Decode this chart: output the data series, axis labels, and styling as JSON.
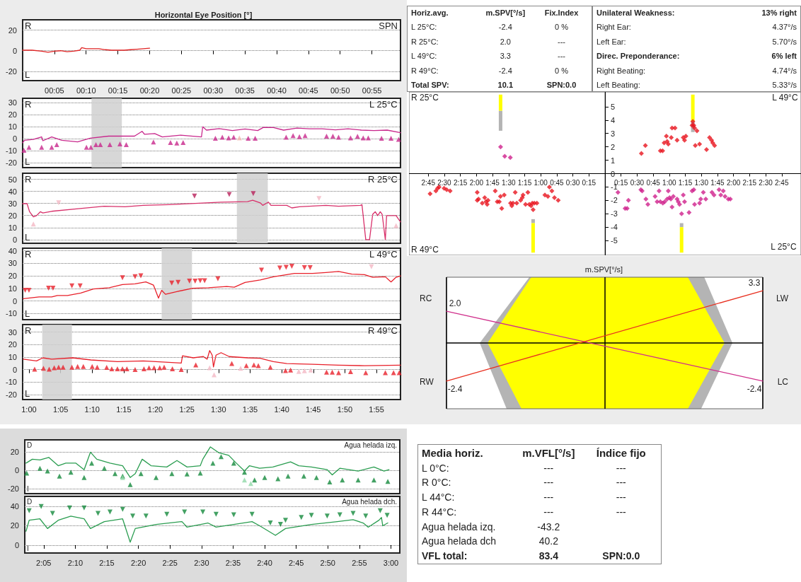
{
  "chart_data": [
    {
      "type": "line",
      "title": "Horizontal Eye Position [°]",
      "annotations": [
        "R",
        "L",
        "SPN"
      ],
      "xlim": [
        0,
        59.5
      ],
      "xticks": [
        {
          "value": 5,
          "label": "00:05"
        },
        {
          "value": 10,
          "label": "00:10"
        },
        {
          "value": 15,
          "label": "00:15"
        },
        {
          "value": 20,
          "label": "00:20"
        },
        {
          "value": 25,
          "label": "00:25"
        },
        {
          "value": 30,
          "label": "00:30"
        },
        {
          "value": 35,
          "label": "00:35"
        },
        {
          "value": 40,
          "label": "00:40"
        },
        {
          "value": 45,
          "label": "00:45"
        },
        {
          "value": 50,
          "label": "00:50"
        },
        {
          "value": 55,
          "label": "00:55"
        }
      ],
      "ylim": [
        -29,
        30
      ],
      "yticks": [
        -20,
        0,
        20
      ],
      "grid": "y",
      "series": [
        {
          "type": "line",
          "color": "#e02424",
          "marker": "none",
          "x": [
            0,
            1.5,
            3,
            4,
            5,
            6,
            7,
            8,
            9,
            9.3,
            10,
            11,
            12,
            13,
            14,
            15,
            16,
            17,
            18,
            19,
            20
          ],
          "values": [
            0.5,
            0.5,
            -0.5,
            -1.5,
            -0.5,
            0,
            -1,
            -0.5,
            0.5,
            3,
            2,
            2,
            2,
            1,
            0.5,
            0.5,
            0.5,
            1,
            1.5,
            2,
            2.5
          ]
        }
      ]
    },
    {
      "type": "line",
      "annotations": [
        "R",
        "L",
        "L 25°C"
      ],
      "xlim": [
        59,
        118.8
      ],
      "ylim": [
        -24,
        33.5
      ],
      "yticks": [
        -20,
        -10,
        0,
        10,
        20,
        30
      ],
      "tick_labels": "y",
      "grid": "y",
      "bands": [
        {
          "axis": "x",
          "from": 69.9,
          "to": 74.7,
          "color": "#d0d0d0"
        }
      ],
      "series": [
        {
          "type": "line",
          "color": "#c8288c",
          "marker": "none",
          "x": [
            59,
            59.3,
            60.7,
            62,
            62.2,
            63.6,
            65.2,
            67.7,
            69.7,
            72.6,
            76.7,
            77.9,
            78.3,
            79.9,
            81.1,
            84,
            87.3,
            87.5,
            88.1,
            90.1,
            92.2,
            94.2,
            96.2,
            97.1,
            98.7,
            100.3,
            102.4,
            104.4,
            106.4,
            108.5,
            110.5,
            112.6,
            114.6,
            116.7,
            118.8
          ],
          "values": [
            -3.4,
            -1.3,
            -0.6,
            1.5,
            -1.7,
            1.5,
            -1.3,
            -2.7,
            0.4,
            2.1,
            2.1,
            6.1,
            3.6,
            4.2,
            1.5,
            2.9,
            1.5,
            9.9,
            7.1,
            8.4,
            6.7,
            8,
            6.7,
            9.4,
            9.2,
            7.1,
            8.8,
            8.2,
            8.2,
            7.3,
            8.2,
            7.1,
            6.7,
            7.1,
            5
          ]
        },
        {
          "type": "scatter",
          "color": "#c8288c",
          "marker": "triangle",
          "x": [
            59.2,
            60,
            62,
            63.6,
            64.4,
            69.1,
            69.8,
            70.6,
            71.3,
            72.8,
            74.4,
            75.4,
            79.7,
            82.4,
            83.4,
            84.4,
            89.5,
            90.6,
            91.6,
            92.4,
            94.7,
            95.8,
            100.7,
            101.8,
            102.8,
            103.7,
            107.1,
            108.1,
            109,
            110.9,
            112,
            112.9,
            113.7,
            115.8,
            117.3,
            118.5
          ],
          "values": [
            -9.6,
            -7.1,
            -7.1,
            -7.1,
            -5,
            -7.1,
            -7.1,
            -5,
            -5,
            -5,
            -4.4,
            -5,
            -2.7,
            -3.1,
            -3.6,
            -3.1,
            0.4,
            1.3,
            0.6,
            1.3,
            0.4,
            0.4,
            1.3,
            2.5,
            1.7,
            2.5,
            2.1,
            2.1,
            1.3,
            0.6,
            1.9,
            0.6,
            0.6,
            0.4,
            0.4,
            -0.6
          ]
        },
        {
          "type": "scatter",
          "color": "#f2b8b0",
          "marker": "triangle",
          "x": [
            93.3
          ],
          "values": [
            0.6
          ]
        }
      ]
    },
    {
      "type": "line",
      "annotations": [
        "R",
        "L",
        "R 25°C"
      ],
      "xlim": [
        59,
        118.8
      ],
      "ylim": [
        -3,
        55
      ],
      "yticks": [
        0,
        10,
        20,
        30,
        40,
        50
      ],
      "tick_labels": "y",
      "grid": "y",
      "bands": [
        {
          "axis": "x",
          "from": 92.9,
          "to": 97.8,
          "color": "#d0d0d0"
        }
      ],
      "series": [
        {
          "type": "line",
          "color": "#d8306a",
          "marker": "none",
          "x": [
            59,
            59.7,
            60.1,
            60.7,
            61.2,
            61.8,
            62.2,
            63.6,
            67.8,
            71.9,
            75.2,
            78.1,
            82.2,
            86.3,
            90.4,
            94.6,
            95.4,
            96.6,
            97,
            97.9,
            98.3,
            100.8,
            101.6,
            102.8,
            107,
            109,
            112.5,
            112.7,
            113.3,
            113.9,
            114.4,
            114.8,
            115.2,
            115.6,
            115.9,
            116.4,
            116.6,
            118.1,
            118.8
          ],
          "values": [
            29.8,
            29.8,
            23.1,
            18.9,
            19.9,
            23.1,
            22.1,
            23.5,
            25.6,
            27.7,
            27.3,
            28.4,
            29,
            30,
            31.1,
            31.5,
            32.6,
            30.5,
            28.4,
            31.1,
            28.4,
            28.4,
            26.3,
            27.3,
            28.4,
            27.7,
            28.4,
            29,
            0,
            0,
            21,
            23.1,
            19.9,
            23.1,
            21,
            0,
            19.9,
            19.9,
            14.7
          ]
        },
        {
          "type": "scatter",
          "color": "#b8205a",
          "marker": "triangle-down",
          "x": [
            86.2,
            91.7,
            95.5
          ],
          "values": [
            36.1,
            37.4,
            38.2
          ]
        },
        {
          "type": "scatter",
          "color": "#f4b8c4",
          "marker": "triangle",
          "x": [
            60.7,
            118.1
          ],
          "values": [
            13,
            11.6
          ]
        },
        {
          "type": "scatter",
          "color": "#f4b8c4",
          "marker": "triangle-down",
          "x": [
            64.7,
            105.9
          ],
          "values": [
            30.5,
            34
          ]
        }
      ]
    },
    {
      "type": "line",
      "annotations": [
        "R",
        "L",
        "L 49°C"
      ],
      "xlim": [
        59,
        118.8
      ],
      "ylim": [
        -14.8,
        42
      ],
      "yticks": [
        -10,
        0,
        10,
        20,
        30,
        40
      ],
      "tick_labels": "y",
      "grid": "y",
      "bands": [
        {
          "axis": "x",
          "from": 81,
          "to": 85.8,
          "color": "#d0d0d0"
        }
      ],
      "series": [
        {
          "type": "line",
          "color": "#e8202a",
          "marker": "none",
          "x": [
            59.1,
            61.6,
            63.6,
            64.5,
            66.1,
            68.2,
            70.2,
            72.7,
            74.8,
            76.8,
            78.5,
            79.7,
            80.5,
            81,
            81.6,
            83.4,
            85.9,
            88.4,
            91.3,
            92.5,
            94.2,
            96.6,
            98.7,
            100.8,
            102,
            104.9,
            107,
            109,
            111.1,
            113.1,
            114.4,
            116.4,
            117.3,
            118.1,
            118.8
          ],
          "values": [
            1.9,
            3.3,
            3.3,
            4.4,
            4.4,
            6.4,
            9.6,
            10.6,
            13.1,
            13.7,
            15.2,
            12.7,
            2.3,
            8.5,
            5.4,
            7.5,
            10.2,
            10.6,
            11.6,
            11,
            14.8,
            16.8,
            19.3,
            21,
            22,
            22,
            22.7,
            23.5,
            21.4,
            21,
            18.9,
            19.3,
            15.2,
            18.9,
            20
          ]
        },
        {
          "type": "scatter",
          "color": "#e8202a",
          "marker": "triangle-down",
          "x": [
            59.4,
            60,
            63.1,
            63.8,
            66.8,
            68.1,
            74.8,
            76.8,
            77.7,
            82.6,
            83.6,
            85.4,
            86.3,
            87.1,
            87.8,
            89.9,
            96.8,
            99.7,
            100.7,
            101.6,
            103.6,
            104.5
          ],
          "values": [
            8.5,
            8.5,
            10.2,
            10.2,
            12.1,
            12.1,
            18.5,
            19.3,
            20,
            14.3,
            14.8,
            15.8,
            15.8,
            16.2,
            16.2,
            17.7,
            24.5,
            26.2,
            26.8,
            27.7,
            26.6,
            26.6
          ]
        },
        {
          "type": "scatter",
          "color": "#f4b8c4",
          "marker": "triangle-down",
          "x": [
            114.2
          ],
          "values": [
            27.2
          ]
        }
      ]
    },
    {
      "type": "line",
      "annotations": [
        "R",
        "L",
        "R 49°C"
      ],
      "xlim": [
        59,
        118.8
      ],
      "xticks": [
        {
          "value": 60,
          "label": "1:00"
        },
        {
          "value": 65,
          "label": "1:05"
        },
        {
          "value": 70,
          "label": "1:10"
        },
        {
          "value": 75,
          "label": "1:15"
        },
        {
          "value": 80,
          "label": "1:20"
        },
        {
          "value": 85,
          "label": "1:25"
        },
        {
          "value": 90,
          "label": "1:30"
        },
        {
          "value": 95,
          "label": "1:35"
        },
        {
          "value": 100,
          "label": "1:40"
        },
        {
          "value": 105,
          "label": "1:45"
        },
        {
          "value": 110,
          "label": "1:50"
        },
        {
          "value": 115,
          "label": "1:55"
        }
      ],
      "ylim": [
        -24,
        36
      ],
      "yticks": [
        -20,
        -10,
        0,
        10,
        20,
        30
      ],
      "grid": "y",
      "bands": [
        {
          "axis": "x",
          "from": 62.1,
          "to": 66.8,
          "color": "#d0d0d0"
        }
      ],
      "series": [
        {
          "type": "line",
          "color": "#e8202a",
          "marker": "none",
          "x": [
            59.1,
            61.2,
            62.2,
            63.6,
            66.9,
            69.8,
            74,
            78.1,
            84.1,
            84.3,
            86,
            87.6,
            88.2,
            88.6,
            89,
            89.2,
            89.6,
            90.4,
            91.7,
            94.6,
            96.6,
            98.7,
            100.8,
            104.9,
            109,
            113.1,
            118.8
          ],
          "values": [
            8.3,
            6.9,
            9.4,
            8.3,
            9.4,
            7.7,
            6.3,
            6.9,
            5.2,
            11,
            9.4,
            10.4,
            8.3,
            15.2,
            11.5,
            2.1,
            11.5,
            13.5,
            10.4,
            9.4,
            9,
            6.3,
            4.8,
            4.2,
            3.5,
            3.1,
            3.5
          ]
        },
        {
          "type": "scatter",
          "color": "#e8202a",
          "marker": "triangle",
          "x": [
            60.9,
            62.3,
            63.2,
            64,
            64.7,
            65.4,
            66.8,
            67.7,
            68.6,
            70,
            70.8,
            72.3,
            73.1,
            74,
            74.8,
            75.5,
            76.8,
            78.2,
            79,
            79.8,
            80.7,
            81.4,
            82.7,
            84.1,
            86.4,
            92.1,
            94.4,
            95.6,
            96.3,
            98.2,
            100.6,
            101.4,
            107.1,
            108,
            109,
            110.9,
            113.3,
            116.4,
            117.7,
            118.6
          ],
          "values": [
            0.4,
            1,
            0.4,
            1.5,
            1.9,
            1.9,
            1.9,
            2.5,
            2.5,
            2.5,
            1.9,
            1.7,
            0.6,
            0.6,
            0.6,
            0.6,
            0,
            0.6,
            1.5,
            1.5,
            1.5,
            1.9,
            0.6,
            0,
            3.8,
            4.8,
            3.1,
            3.8,
            3.1,
            1.9,
            -0.8,
            -0.4,
            -2.1,
            -2.1,
            -2.5,
            -1.7,
            -2.5,
            -2.5,
            -2.5,
            -2.5
          ]
        },
        {
          "type": "scatter",
          "color": "#f4b8c4",
          "marker": "triangle",
          "x": [
            88.6,
            89.3,
            93.5,
            102.7,
            103.6,
            104.6
          ],
          "values": [
            1.5,
            -4.2,
            1,
            -1.5,
            -1,
            -0.4
          ]
        }
      ]
    },
    {
      "type": "other",
      "annotations": [
        "Horiz.avg.",
        "m.SPV[°/s]",
        "Fix.Index",
        "L 25°C:",
        "-2.4",
        "0 %",
        "R 25°C:",
        "2.0",
        "---",
        "L 49°C:",
        "3.3",
        "---",
        "R 49°C:",
        "-2.4",
        "0 %",
        "Total SPV:",
        "10.1",
        "SPN:0.0"
      ]
    },
    {
      "type": "other",
      "annotations": [
        "Unilateral Weakness:",
        "13% right",
        "Right Ear:",
        "4.37°/s",
        "Left Ear:",
        "5.70°/s",
        "Direc. Preponderance:",
        "6% left",
        "Right Beating:",
        "4.74°/s",
        "Left Beating:",
        "5.33°/s"
      ]
    },
    {
      "type": "scatter",
      "annotations": [
        "R 25°C",
        "R 49°C"
      ],
      "xlim": [
        183,
        0
      ],
      "xticks": [
        {
          "value": 15,
          "label": "0:15"
        },
        {
          "value": 30,
          "label": "0:30"
        },
        {
          "value": 45,
          "label": "0:45"
        },
        {
          "value": 60,
          "label": "1:00"
        },
        {
          "value": 75,
          "label": "1:15"
        },
        {
          "value": 90,
          "label": "1:30"
        },
        {
          "value": 105,
          "label": "1:45"
        },
        {
          "value": 120,
          "label": "2:00"
        },
        {
          "value": 135,
          "label": "2:15"
        },
        {
          "value": 150,
          "label": "2:30"
        },
        {
          "value": 165,
          "label": "2:45"
        }
      ],
      "ylim": [
        -6.1,
        6.1
      ],
      "tick_labels": "x",
      "marker": "diamond",
      "series": [
        {
          "type": "bar",
          "color": "#b4b4b4",
          "x": [
            97.5,
            67.1
          ],
          "base": [
            3.2,
            -3.7
          ],
          "values": [
            1.5,
            0.3
          ]
        },
        {
          "type": "bar",
          "color": "#ffff00",
          "x": [
            97.5,
            67.1
          ],
          "base": [
            4.7,
            -5.9
          ],
          "values": [
            1.2,
            2.2
          ]
        },
        {
          "color": "#d0208c",
          "x": [
            97.5,
            93.6,
            88.4
          ],
          "values": [
            2,
            1.3,
            1.2
          ]
        },
        {
          "color": "#e8141e",
          "x": [
            163.3,
            157.9,
            156.3,
            154.9,
            150.2,
            147.8,
            144.6,
            119.3,
            119.3,
            118.1,
            114.6,
            112.3,
            111.1,
            110,
            109.2,
            102.5,
            100.6,
            98.7,
            97.6,
            96.4,
            94.1,
            88.2,
            87,
            85.9,
            83.8,
            82.4,
            81.2,
            80,
            78.8,
            77.2,
            76.5,
            74.2,
            72,
            70.7,
            69,
            67.9,
            67.1,
            66,
            63.6,
            56.1,
            53.3,
            51.9,
            49.6,
            47.2,
            43.7
          ],
          "values": [
            -1.5,
            -1.3,
            -1.1,
            -1,
            -1.1,
            -1.2,
            -1.3,
            -1.4,
            -2,
            -1.9,
            -2.2,
            -1.8,
            -2.1,
            -2.3,
            -2,
            -1.3,
            -2.1,
            -2.1,
            -1.7,
            -2.6,
            -1.6,
            -2.2,
            -2.4,
            -2.2,
            -1.4,
            -2.2,
            null,
            null,
            -2,
            -1.8,
            -1.6,
            -2.3,
            -1.4,
            -2.3,
            -2.4,
            -2.2,
            -2.7,
            -2.2,
            -2.2,
            -1.6,
            -1.7,
            -1,
            -1.3,
            -1.8,
            -2
          ]
        }
      ]
    },
    {
      "type": "scatter",
      "annotations": [
        "L 49°C",
        "L 25°C"
      ],
      "xlim": [
        0,
        183
      ],
      "xticks": [
        {
          "value": 15,
          "label": "0:15"
        },
        {
          "value": 30,
          "label": "0:30"
        },
        {
          "value": 45,
          "label": "0:45"
        },
        {
          "value": 60,
          "label": "1:00"
        },
        {
          "value": 75,
          "label": "1:15"
        },
        {
          "value": 90,
          "label": "1:30"
        },
        {
          "value": 105,
          "label": "1:45"
        },
        {
          "value": 120,
          "label": "2:00"
        },
        {
          "value": 135,
          "label": "2:15"
        },
        {
          "value": 150,
          "label": "2:30"
        },
        {
          "value": 165,
          "label": "2:45"
        }
      ],
      "ylim": [
        -6.1,
        6.1
      ],
      "yticks": [
        -5,
        -4,
        -3,
        -2,
        -1,
        0,
        1,
        2,
        3,
        4,
        5
      ],
      "marker": "diamond",
      "series": [
        {
          "type": "bar",
          "color": "#b4b4b4",
          "x": [
            82,
            71.5
          ],
          "base": [
            3.1,
            -4
          ],
          "values": [
            0.8,
            0.3
          ]
        },
        {
          "type": "bar",
          "color": "#ffff00",
          "x": [
            82,
            71.5
          ],
          "base": [
            3.9,
            -5.9
          ],
          "values": [
            2,
            1.9
          ]
        },
        {
          "color": "#e8141e",
          "x": [
            34,
            37.7,
            51.7,
            53.8,
            55.2,
            57.3,
            58,
            59.1,
            61.9,
            62.6,
            65.4,
            67.3,
            73.1,
            74.3,
            75.5,
            81.3,
            82,
            82.9,
            83.6,
            84.8,
            85.9,
            84.3,
            88.3,
            94.8,
            97.6,
            99.5,
            100.6,
            102.3
          ],
          "values": [
            1.5,
            2.1,
            1.7,
            1.7,
            2.3,
            2.8,
            2.4,
            2.2,
            2.7,
            3.4,
            3.4,
            2.5,
            2.7,
            2.5,
            2.8,
            3.6,
            3.9,
            3.6,
            3.4,
            null,
            3.2,
            2.1,
            2.2,
            1.8,
            2.7,
            2.5,
            2.3,
            2.1
          ]
        },
        {
          "color": "#d0208c",
          "x": [
            12.1,
            18.8,
            20.7,
            21.9,
            33.5,
            34.7,
            38.2,
            40,
            46.8,
            48.7,
            50.5,
            51.7,
            54,
            55.7,
            58,
            59.1,
            60.3,
            61.5,
            62.6,
            63.8,
            67.3,
            68.4,
            69.6,
            71.5,
            73.1,
            74.3,
            78.5,
            81.3,
            82.9,
            83.6,
            88.3,
            89.4,
            91.8,
            94.1,
            99.9,
            101.8,
            106.5,
            108.1,
            110.4,
            112.1,
            115.1,
            117
          ],
          "values": [
            -1.4,
            -2.6,
            -2.6,
            -2,
            -1.2,
            -1.3,
            -1.9,
            -2.3,
            -1.7,
            -2.1,
            -1.3,
            -2.1,
            -2.2,
            -2.1,
            -1.9,
            -1.3,
            -1.8,
            -1.9,
            -2.5,
            -1.7,
            -1.9,
            -2.1,
            -2.3,
            -3,
            -1.6,
            -2.1,
            -2.9,
            -1.3,
            -1.2,
            -2.3,
            -2.2,
            -1.9,
            -1.4,
            -1.9,
            -1.4,
            -1.6,
            -1.2,
            -1.6,
            -1.3,
            -1.7,
            -1.9,
            -1.9
          ]
        }
      ]
    },
    {
      "type": "line",
      "title": "m.SPV[°/s]",
      "annotations": [
        "RC",
        "RW",
        "LW",
        "LC"
      ],
      "categories": [
        null,
        null,
        null
      ],
      "ylim": [
        -4.15,
        4.15
      ],
      "tick_labels": false,
      "grid": "x",
      "series": [
        {
          "color": "#d0308c",
          "values": [
            2.0,
            null,
            -2.4
          ],
          "value_labels": [
            "2.0",
            null,
            "-2.4"
          ]
        },
        {
          "color": "#e83020",
          "values": [
            -2.4,
            null,
            3.3
          ],
          "value_labels": [
            "-2.4",
            null,
            "3.3"
          ]
        }
      ]
    },
    {
      "type": "line",
      "annotations": [
        "D",
        "I",
        "Agua helada izq."
      ],
      "xlim": [
        122,
        181.4
      ],
      "ylim": [
        -25,
        33
      ],
      "yticks": [
        -20,
        0,
        20
      ],
      "tick_labels": "y",
      "grid": "y",
      "series": [
        {
          "type": "line",
          "color": "#2a9d50",
          "marker": "none",
          "x": [
            122.2,
            123.2,
            124.4,
            125.8,
            127.3,
            128.5,
            130.1,
            131.4,
            132.4,
            133.4,
            135.5,
            137.5,
            138.7,
            139.5,
            140.6,
            142,
            144.5,
            146.1,
            147.7,
            149.8,
            150.2,
            151.4,
            152.7,
            154.3,
            155.5,
            156.8,
            157.6,
            159.2,
            161.3,
            164.1,
            165.4,
            167.4,
            169.9,
            170.7,
            171.9,
            174.8,
            177.3,
            178.9,
            179.7
          ],
          "values": [
            7.9,
            12.1,
            11.3,
            14.1,
            5.1,
            7.9,
            7.9,
            0.8,
            19.7,
            12.1,
            7.9,
            5.1,
            -7.6,
            -3.4,
            12.1,
            5.1,
            3.7,
            10.7,
            3.7,
            5.1,
            12.1,
            25.4,
            19.2,
            16.3,
            7.9,
            -0.6,
            5.1,
            2.3,
            3.7,
            9.3,
            5.1,
            3.7,
            0.8,
            -4.8,
            2.3,
            -0.6,
            3.7,
            -0.6,
            0.8
          ]
        },
        {
          "type": "scatter",
          "color": "#148a3c",
          "marker": "triangle",
          "x": [
            122.3,
            124.4,
            125.6,
            127.5,
            129.3,
            131.4,
            132.6,
            134.6,
            136.3,
            137.5,
            138.7,
            140.4,
            142.8,
            145.3,
            147.7,
            149.8,
            151.8,
            153.1,
            155.1,
            156.8,
            158.4,
            160,
            162.1,
            163.7,
            166.2,
            168.2,
            170.3,
            172.3,
            174.8,
            177.3,
            179.5
          ],
          "values": [
            -2.8,
            2.3,
            -0.6,
            -6.2,
            -2,
            -7.6,
            7.9,
            2.3,
            -3.4,
            -6.2,
            -15.2,
            -3.4,
            -7.6,
            -3.4,
            -3.9,
            -2.8,
            7.9,
            14.9,
            7.9,
            -2,
            -10.4,
            -7.6,
            -9,
            -6.2,
            -6.2,
            -7.6,
            -12.4,
            -10.4,
            -10.4,
            -10.4,
            -11.8
          ]
        },
        {
          "type": "scatter",
          "color": "#90d8a8",
          "marker": "triangle",
          "x": [
            137.5,
            156.8,
            157.8
          ],
          "values": [
            -7.6,
            -10.4,
            -14.1
          ]
        }
      ]
    },
    {
      "type": "line",
      "annotations": [
        "D",
        "I",
        "Agua helada dch."
      ],
      "xlim": [
        122,
        181.4
      ],
      "xticks": [
        {
          "value": 125,
          "label": "2:05"
        },
        {
          "value": 130,
          "label": "2:10"
        },
        {
          "value": 135,
          "label": "2:15"
        },
        {
          "value": 140,
          "label": "2:20"
        },
        {
          "value": 145,
          "label": "2:25"
        },
        {
          "value": 150,
          "label": "2:30"
        },
        {
          "value": 155,
          "label": "2:35"
        },
        {
          "value": 160,
          "label": "2:40"
        },
        {
          "value": 165,
          "label": "2:45"
        },
        {
          "value": 170,
          "label": "2:50"
        },
        {
          "value": 175,
          "label": "2:55"
        },
        {
          "value": 180,
          "label": "3:00"
        }
      ],
      "ylim": [
        -8,
        50
      ],
      "yticks": [
        0,
        20,
        40
      ],
      "grid": "y",
      "series": [
        {
          "type": "line",
          "color": "#2a9d50",
          "marker": "none",
          "x": [
            122.2,
            122.7,
            124.4,
            125.6,
            127.3,
            129.3,
            131.4,
            132.4,
            134.6,
            137.5,
            138.7,
            139.5,
            142.8,
            146.9,
            147.7,
            151,
            152.3,
            155.1,
            158,
            159.2,
            161.7,
            163.3,
            167.4,
            171.5,
            174,
            175.6,
            176.4,
            178.1,
            178.5,
            178.7,
            179.5
          ],
          "values": [
            14.3,
            25.6,
            27,
            17.1,
            25.6,
            29.8,
            27,
            17.1,
            24.2,
            27,
            3.1,
            17.1,
            21.3,
            24.2,
            18.5,
            22.8,
            18.5,
            21.3,
            24.2,
            19.9,
            10.1,
            17.1,
            21.3,
            24.2,
            26.1,
            22.8,
            18.5,
            25.6,
            28.4,
            19.9,
            22.8
          ]
        },
        {
          "type": "scatter",
          "color": "#148a3c",
          "marker": "triangle-down",
          "x": [
            122.7,
            124.6,
            126.4,
            129.1,
            131.4,
            133.6,
            135.5,
            137.5,
            139.1,
            141.2,
            144.5,
            147.3,
            150.2,
            152.3,
            155.1,
            158,
            160.9,
            162.5,
            163.3,
            165.8,
            167.4,
            169.9,
            171.9,
            174,
            176,
            178.3,
            179.4
          ],
          "values": [
            35.4,
            39.6,
            32.6,
            38.2,
            38.2,
            32.6,
            34,
            36.8,
            29.8,
            29.8,
            31.7,
            34,
            34,
            31.7,
            31.2,
            31.7,
            22.8,
            21.3,
            25.6,
            28.4,
            30.6,
            29.8,
            31.2,
            32.6,
            29.8,
            35.4,
            30.6
          ]
        }
      ]
    },
    {
      "type": "other",
      "annotations": [
        "Media horiz.",
        "m.VFL[°/s]",
        "Índice fijo",
        "L 0°C:",
        "---",
        "---",
        "R 0°C:",
        "---",
        "---",
        "L 44°C:",
        "---",
        "---",
        "R 44°C:",
        "---",
        "---",
        "Agua helada izq.",
        "-43.2",
        "Agua helada dch",
        "40.2",
        "VFL total:",
        "83.4",
        "SPN:0.0"
      ]
    }
  ]
}
